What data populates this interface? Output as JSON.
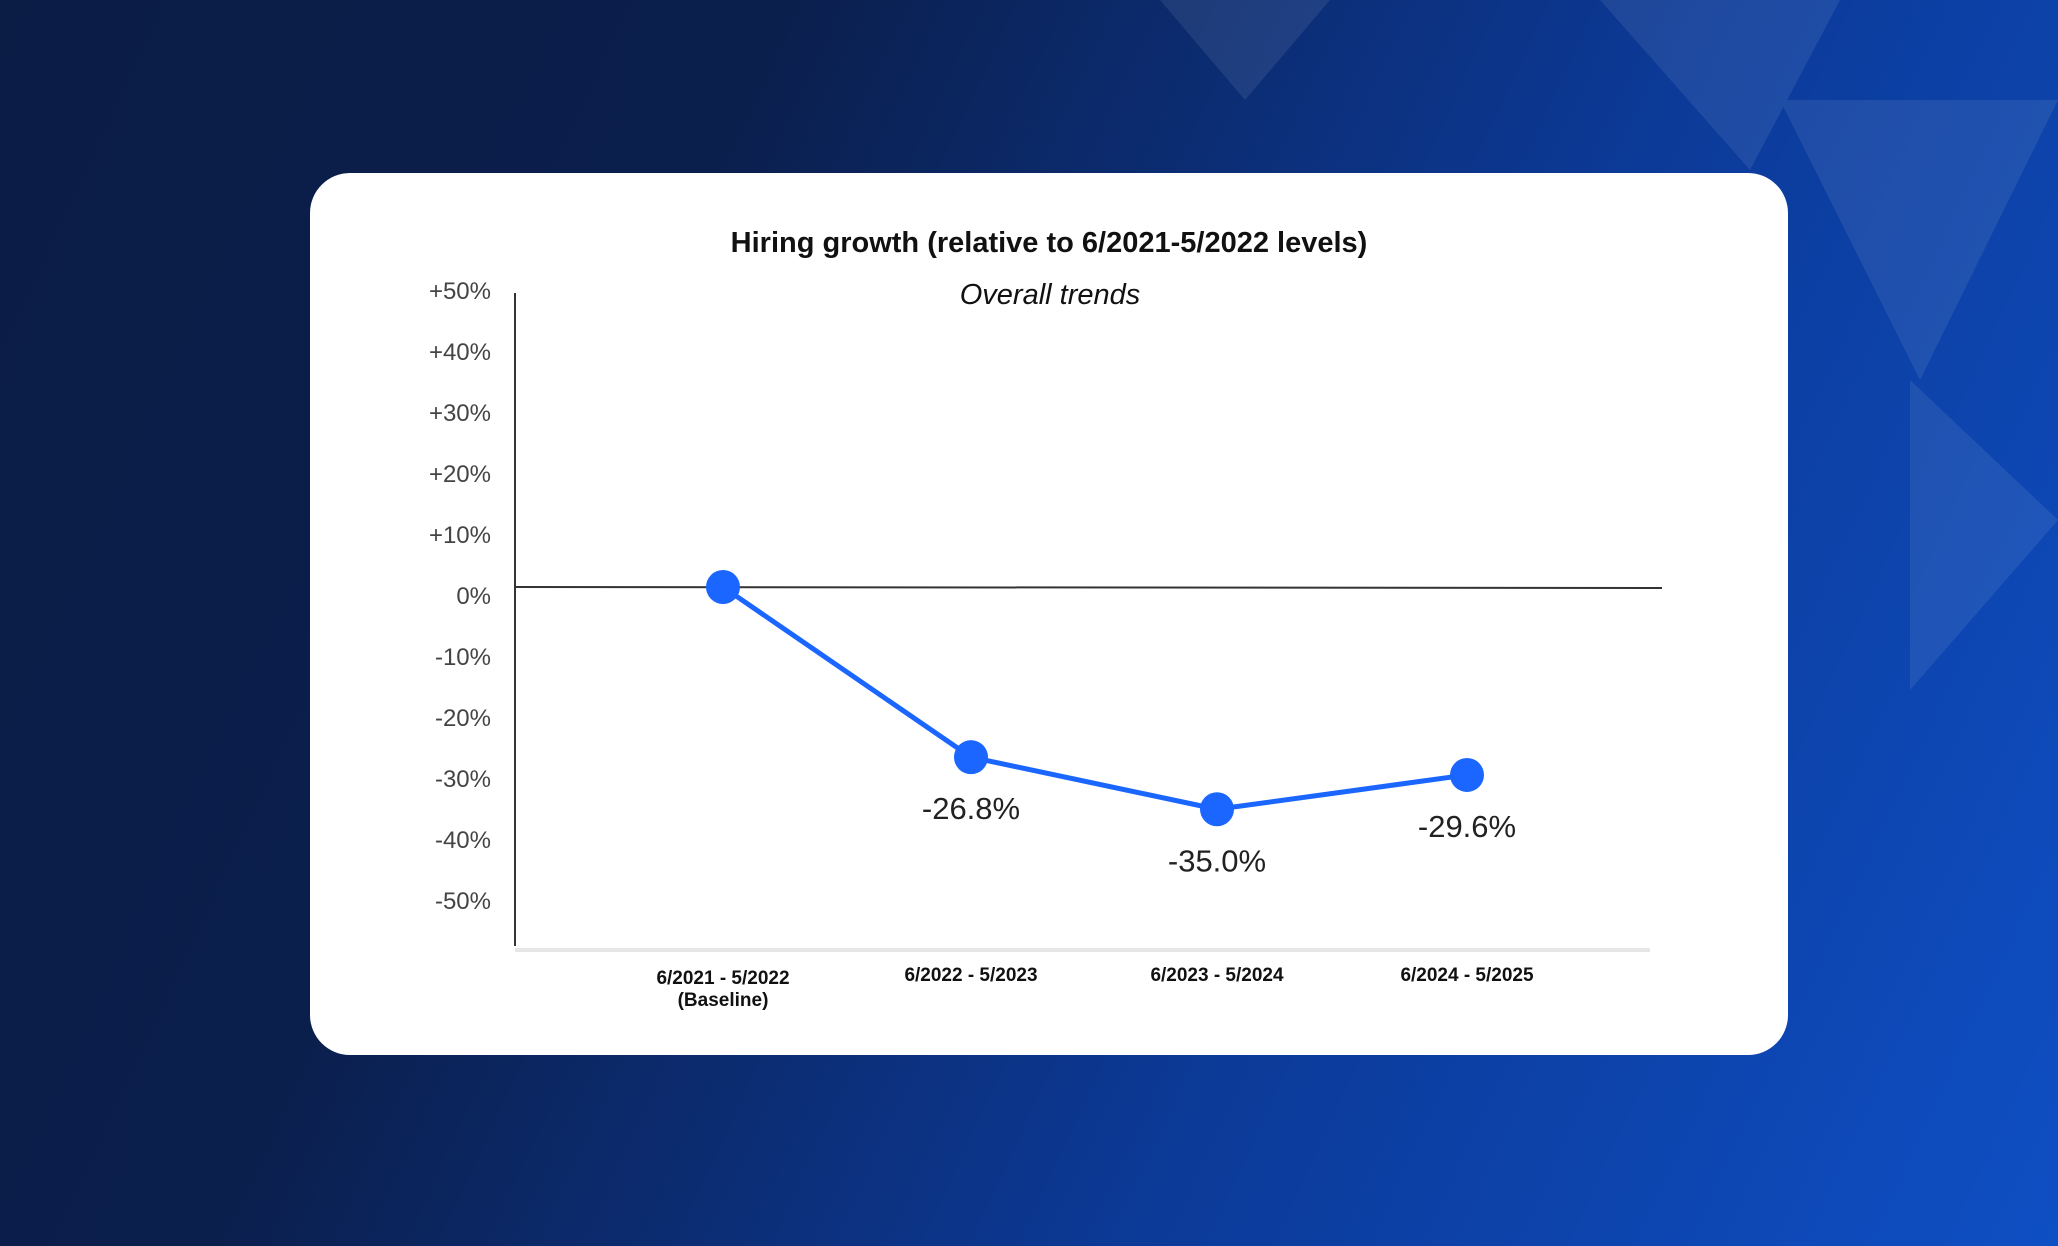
{
  "chart_data": {
    "type": "line",
    "title": "Hiring growth (relative to 6/2021-5/2022 levels)",
    "subtitle": "Overall trends",
    "categories": [
      "6/2021 - 5/2022",
      "6/2022 - 5/2023",
      "6/2023 - 5/2024",
      "6/2024 - 5/2025"
    ],
    "category_sublabels": [
      "(Baseline)",
      "",
      "",
      ""
    ],
    "values": [
      0,
      -26.8,
      -35.0,
      -29.6
    ],
    "data_labels": [
      "",
      "-26.8%",
      "-35.0%",
      "-29.6%"
    ],
    "y_ticks": [
      "+50%",
      "+40%",
      "+30%",
      "+20%",
      "+10%",
      "0%",
      "-10%",
      "-20%",
      "-30%",
      "-40%",
      "-50%"
    ],
    "y_tick_values": [
      50,
      40,
      30,
      20,
      10,
      0,
      -10,
      -20,
      -30,
      -40,
      -50
    ],
    "ylim": [
      -50,
      50
    ],
    "grid": false,
    "line_color": "#1a66ff"
  }
}
